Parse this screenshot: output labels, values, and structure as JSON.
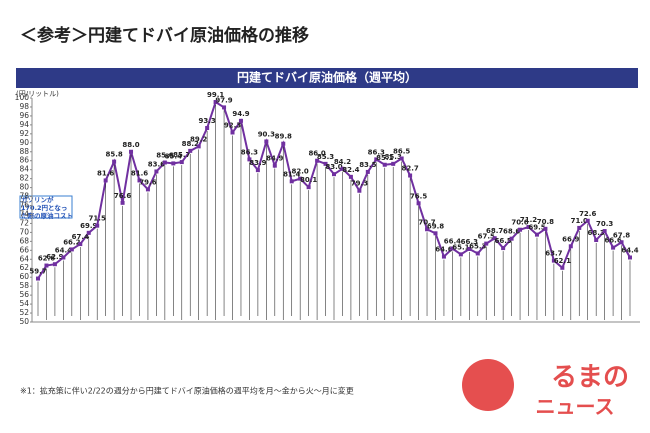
{
  "header": {
    "title": "＜参考＞円建てドバイ原油価格の推移"
  },
  "chart_data": {
    "type": "line",
    "title": "円建てドバイ原油価格（週平均）",
    "y_label": "(円/リットル)",
    "annotation": "ガソリンが170.2円となった際の原油コスト",
    "color": "#7030a0",
    "grid": false,
    "ylim": [
      50,
      100
    ],
    "yticks": [
      50,
      52,
      54,
      56,
      58,
      60,
      62,
      64,
      66,
      68,
      70,
      72,
      74,
      76,
      78,
      80,
      82,
      84,
      86,
      88,
      90,
      92,
      94,
      96,
      98,
      100
    ],
    "values": [
      59.7,
      62.6,
      62.9,
      64.4,
      66.2,
      67.4,
      69.9,
      71.5,
      81.6,
      85.8,
      76.6,
      88.0,
      81.6,
      79.6,
      83.6,
      85.6,
      85.4,
      85.7,
      88.2,
      89.2,
      93.3,
      99.1,
      97.9,
      92.3,
      94.9,
      86.3,
      83.9,
      90.3,
      84.9,
      89.8,
      81.4,
      82.0,
      80.1,
      86.0,
      85.3,
      83.0,
      84.2,
      82.4,
      79.3,
      83.5,
      86.3,
      85.1,
      85.3,
      86.5,
      82.7,
      76.5,
      70.7,
      69.8,
      64.6,
      66.4,
      65.1,
      66.3,
      65.3,
      67.5,
      68.7,
      66.5,
      68.6,
      70.6,
      71.2,
      69.5,
      70.8,
      63.7,
      62.1,
      66.9,
      71.0,
      72.6,
      68.3,
      70.3,
      66.6,
      67.8,
      64.4
    ],
    "value_labels": [
      "59.7",
      "62.6",
      "62.9",
      "64.4",
      "66.2",
      "67.4",
      "69.9",
      "71.5",
      "81.6",
      "85.8",
      "76.6",
      "88.0",
      "81.6",
      "79.6",
      "83.6",
      "85.6",
      "85.4",
      "85.7",
      "88.2",
      "89.2",
      "93.3",
      "99.1",
      "97.9",
      "92.3",
      "94.9",
      "86.3",
      "83.9",
      "90.3",
      "84.9",
      "89.8",
      "81.4",
      "82.0",
      "80.1",
      "86.0",
      "85.3",
      "83.0",
      "84.2",
      "82.4",
      "79.3",
      "83.5",
      "86.3",
      "85.1",
      "85.3",
      "86.5",
      "82.7",
      "76.5",
      "70.7",
      "69.8",
      "64.6",
      "66.4",
      "65.1",
      "66.3",
      "65.3",
      "67.5",
      "68.7",
      "66.5",
      "68.6",
      "70.6",
      "71.2",
      "69.5",
      "70.8",
      "63.7",
      "62.1",
      "66.9",
      "71.0",
      "72.6",
      "68.3",
      "70.3",
      "66.6",
      "67.8",
      "64.4"
    ]
  },
  "footnote": "※1：拡充策に伴い2/22の週分から円建てドバイ原油価格の週平均を月～金から火～月に変更",
  "logo": {
    "top": "るまの",
    "bottom": "ニュース"
  }
}
